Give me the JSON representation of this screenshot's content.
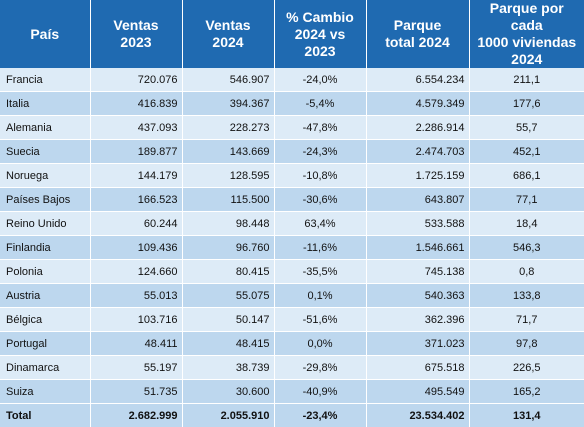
{
  "headers": {
    "pais": "País",
    "ventas_2023": "Ventas\n2023",
    "ventas_2024": "Ventas\n2024",
    "cambio": "% Cambio\n2024 vs 2023",
    "parque": "Parque\ntotal 2024",
    "parque_por_cada": "Parque por cada\n1000 viviendas\n2024"
  },
  "rows": [
    {
      "pais": "Francia",
      "v2023": "720.076",
      "v2024": "546.907",
      "cambio": "-24,0%",
      "parque": "6.554.234",
      "por_mil": "211,1"
    },
    {
      "pais": "Italia",
      "v2023": "416.839",
      "v2024": "394.367",
      "cambio": "-5,4%",
      "parque": "4.579.349",
      "por_mil": "177,6"
    },
    {
      "pais": "Alemania",
      "v2023": "437.093",
      "v2024": "228.273",
      "cambio": "-47,8%",
      "parque": "2.286.914",
      "por_mil": "55,7"
    },
    {
      "pais": "Suecia",
      "v2023": "189.877",
      "v2024": "143.669",
      "cambio": "-24,3%",
      "parque": "2.474.703",
      "por_mil": "452,1"
    },
    {
      "pais": "Noruega",
      "v2023": "144.179",
      "v2024": "128.595",
      "cambio": "-10,8%",
      "parque": "1.725.159",
      "por_mil": "686,1"
    },
    {
      "pais": "Países Bajos",
      "v2023": "166.523",
      "v2024": "115.500",
      "cambio": "-30,6%",
      "parque": "643.807",
      "por_mil": "77,1"
    },
    {
      "pais": "Reino Unido",
      "v2023": "60.244",
      "v2024": "98.448",
      "cambio": "63,4%",
      "parque": "533.588",
      "por_mil": "18,4"
    },
    {
      "pais": "Finlandia",
      "v2023": "109.436",
      "v2024": "96.760",
      "cambio": "-11,6%",
      "parque": "1.546.661",
      "por_mil": "546,3"
    },
    {
      "pais": "Polonia",
      "v2023": "124.660",
      "v2024": "80.415",
      "cambio": "-35,5%",
      "parque": "745.138",
      "por_mil": "0,8"
    },
    {
      "pais": "Austria",
      "v2023": "55.013",
      "v2024": "55.075",
      "cambio": "0,1%",
      "parque": "540.363",
      "por_mil": "133,8"
    },
    {
      "pais": "Bélgica",
      "v2023": "103.716",
      "v2024": "50.147",
      "cambio": "-51,6%",
      "parque": "362.396",
      "por_mil": "71,7"
    },
    {
      "pais": "Portugal",
      "v2023": "48.411",
      "v2024": "48.415",
      "cambio": "0,0%",
      "parque": "371.023",
      "por_mil": "97,8"
    },
    {
      "pais": "Dinamarca",
      "v2023": "55.197",
      "v2024": "38.739",
      "cambio": "-29,8%",
      "parque": "675.518",
      "por_mil": "226,5"
    },
    {
      "pais": "Suiza",
      "v2023": "51.735",
      "v2024": "30.600",
      "cambio": "-40,9%",
      "parque": "495.549",
      "por_mil": "165,2"
    }
  ],
  "total": {
    "pais": "Total",
    "v2023": "2.682.999",
    "v2024": "2.055.910",
    "cambio": "-23,4%",
    "parque": "23.534.402",
    "por_mil": "131,4"
  },
  "colors": {
    "header_bg": "#1f6ab1",
    "row_light": "#ddebf7",
    "row_dark": "#bdd7ee"
  }
}
